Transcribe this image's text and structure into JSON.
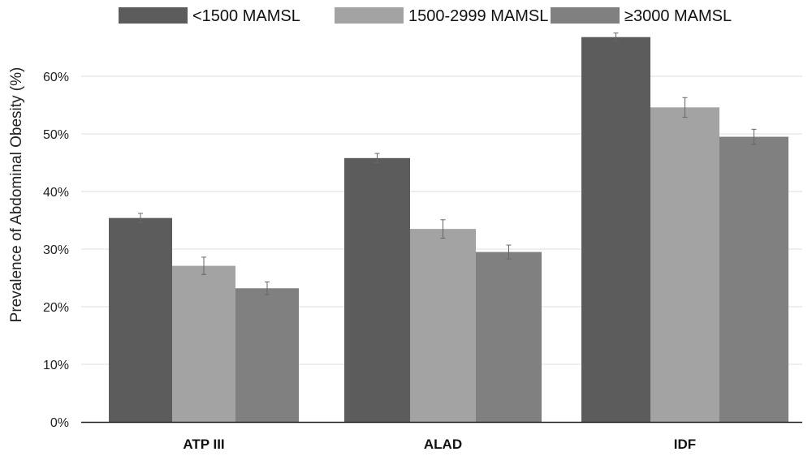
{
  "chart_data": {
    "type": "bar",
    "ylabel": "Prevalence of Abdominal Obesity (%)",
    "xlabel": "",
    "ylim": [
      0,
      67
    ],
    "yticks": [
      0,
      10,
      20,
      30,
      40,
      50,
      60
    ],
    "ytick_labels": [
      "0%",
      "10%",
      "20%",
      "30%",
      "40%",
      "50%",
      "60%"
    ],
    "grid": true,
    "legend_position": "top",
    "categories": [
      "ATP III",
      "ALAD",
      "IDF"
    ],
    "series": [
      {
        "name": "<1500 MAMSL",
        "color": "#5c5c5c",
        "values": [
          35.4,
          45.8,
          66.8
        ],
        "error": [
          0.8,
          0.8,
          0.7
        ]
      },
      {
        "name": "1500-2999 MAMSL",
        "color": "#a3a3a3",
        "values": [
          27.1,
          33.5,
          54.6
        ],
        "error": [
          1.5,
          1.6,
          1.7
        ]
      },
      {
        "name": "≥3000 MAMSL",
        "color": "#808080",
        "values": [
          23.2,
          29.5,
          49.5
        ],
        "error": [
          1.1,
          1.2,
          1.3
        ]
      }
    ]
  }
}
